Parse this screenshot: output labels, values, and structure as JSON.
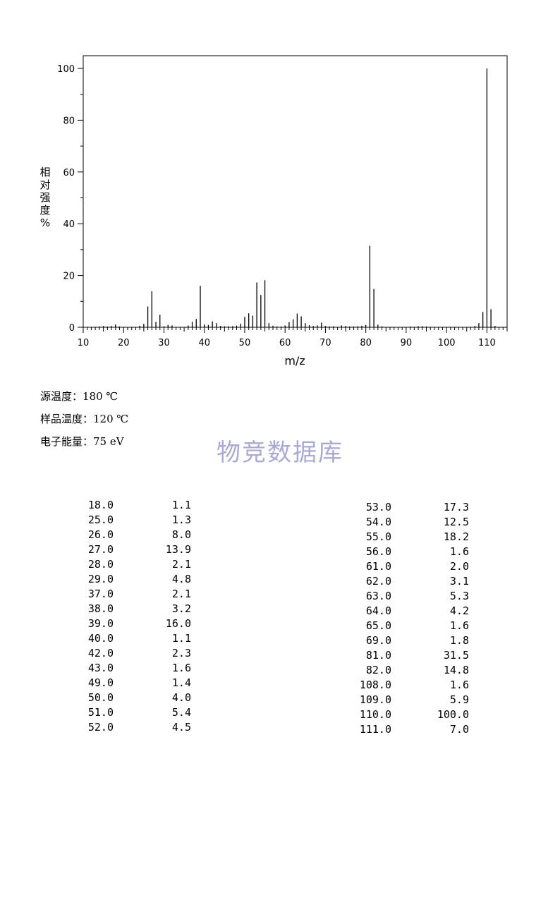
{
  "chart_data": {
    "type": "bar",
    "xlabel": "m/z",
    "ylabel_chars": [
      "相",
      "对",
      "强",
      "度",
      "%"
    ],
    "xlim": [
      10,
      115
    ],
    "ylim": [
      0,
      100
    ],
    "x_ticks": [
      10,
      20,
      30,
      40,
      50,
      60,
      70,
      80,
      90,
      100,
      110
    ],
    "y_ticks": [
      0,
      20,
      40,
      60,
      80,
      100
    ],
    "peaks": [
      {
        "x": 14,
        "y": 0.3
      },
      {
        "x": 15,
        "y": 0.5
      },
      {
        "x": 16,
        "y": 0.3
      },
      {
        "x": 17,
        "y": 0.5
      },
      {
        "x": 18,
        "y": 1.1
      },
      {
        "x": 19,
        "y": 0.3
      },
      {
        "x": 24,
        "y": 0.6
      },
      {
        "x": 25,
        "y": 1.3
      },
      {
        "x": 26,
        "y": 8.0
      },
      {
        "x": 27,
        "y": 13.9
      },
      {
        "x": 28,
        "y": 2.1
      },
      {
        "x": 29,
        "y": 4.8
      },
      {
        "x": 30,
        "y": 0.4
      },
      {
        "x": 31,
        "y": 0.9
      },
      {
        "x": 32,
        "y": 0.7
      },
      {
        "x": 36,
        "y": 0.7
      },
      {
        "x": 37,
        "y": 2.1
      },
      {
        "x": 38,
        "y": 3.2
      },
      {
        "x": 39,
        "y": 16.0
      },
      {
        "x": 40,
        "y": 1.1
      },
      {
        "x": 41,
        "y": 0.9
      },
      {
        "x": 42,
        "y": 2.3
      },
      {
        "x": 43,
        "y": 1.6
      },
      {
        "x": 44,
        "y": 0.5
      },
      {
        "x": 45,
        "y": 0.4
      },
      {
        "x": 46,
        "y": 0.4
      },
      {
        "x": 47,
        "y": 0.4
      },
      {
        "x": 48,
        "y": 0.6
      },
      {
        "x": 49,
        "y": 1.4
      },
      {
        "x": 50,
        "y": 4.0
      },
      {
        "x": 51,
        "y": 5.4
      },
      {
        "x": 52,
        "y": 4.5
      },
      {
        "x": 53,
        "y": 17.3
      },
      {
        "x": 54,
        "y": 12.5
      },
      {
        "x": 55,
        "y": 18.2
      },
      {
        "x": 56,
        "y": 1.6
      },
      {
        "x": 57,
        "y": 0.6
      },
      {
        "x": 58,
        "y": 0.3
      },
      {
        "x": 59,
        "y": 0.3
      },
      {
        "x": 60,
        "y": 0.7
      },
      {
        "x": 61,
        "y": 2.0
      },
      {
        "x": 62,
        "y": 3.1
      },
      {
        "x": 63,
        "y": 5.3
      },
      {
        "x": 64,
        "y": 4.2
      },
      {
        "x": 65,
        "y": 1.6
      },
      {
        "x": 66,
        "y": 0.8
      },
      {
        "x": 67,
        "y": 0.5
      },
      {
        "x": 68,
        "y": 0.7
      },
      {
        "x": 69,
        "y": 1.8
      },
      {
        "x": 70,
        "y": 0.5
      },
      {
        "x": 71,
        "y": 0.3
      },
      {
        "x": 72,
        "y": 0.4
      },
      {
        "x": 74,
        "y": 0.7
      },
      {
        "x": 75,
        "y": 0.5
      },
      {
        "x": 76,
        "y": 0.3
      },
      {
        "x": 77,
        "y": 0.3
      },
      {
        "x": 78,
        "y": 0.4
      },
      {
        "x": 79,
        "y": 0.6
      },
      {
        "x": 80,
        "y": 0.9
      },
      {
        "x": 81,
        "y": 31.5
      },
      {
        "x": 82,
        "y": 14.8
      },
      {
        "x": 83,
        "y": 1.0
      },
      {
        "x": 84,
        "y": 0.4
      },
      {
        "x": 91,
        "y": 0.3
      },
      {
        "x": 93,
        "y": 0.4
      },
      {
        "x": 94,
        "y": 0.4
      },
      {
        "x": 95,
        "y": 0.3
      },
      {
        "x": 107,
        "y": 0.5
      },
      {
        "x": 108,
        "y": 1.6
      },
      {
        "x": 109,
        "y": 5.9
      },
      {
        "x": 110,
        "y": 100.0
      },
      {
        "x": 111,
        "y": 7.0
      },
      {
        "x": 112,
        "y": 0.5
      }
    ]
  },
  "meta": {
    "source_temp": {
      "label": "源温度：",
      "value": "180 ",
      "unit": "℃"
    },
    "sample_temp": {
      "label": "样品温度：",
      "value": "120 ",
      "unit": "℃"
    },
    "electron_energy": {
      "label": "电子能量：",
      "value": "75 eV"
    }
  },
  "watermark": "物竞数据库",
  "table_left": [
    [
      "18.0",
      "1.1"
    ],
    [
      "25.0",
      "1.3"
    ],
    [
      "26.0",
      "8.0"
    ],
    [
      "27.0",
      "13.9"
    ],
    [
      "28.0",
      "2.1"
    ],
    [
      "29.0",
      "4.8"
    ],
    [
      "37.0",
      "2.1"
    ],
    [
      "38.0",
      "3.2"
    ],
    [
      "39.0",
      "16.0"
    ],
    [
      "40.0",
      "1.1"
    ],
    [
      "42.0",
      "2.3"
    ],
    [
      "43.0",
      "1.6"
    ],
    [
      "49.0",
      "1.4"
    ],
    [
      "50.0",
      "4.0"
    ],
    [
      "51.0",
      "5.4"
    ],
    [
      "52.0",
      "4.5"
    ]
  ],
  "table_right": [
    [
      "53.0",
      "17.3"
    ],
    [
      "54.0",
      "12.5"
    ],
    [
      "55.0",
      "18.2"
    ],
    [
      "56.0",
      "1.6"
    ],
    [
      "61.0",
      "2.0"
    ],
    [
      "62.0",
      "3.1"
    ],
    [
      "63.0",
      "5.3"
    ],
    [
      "64.0",
      "4.2"
    ],
    [
      "65.0",
      "1.6"
    ],
    [
      "69.0",
      "1.8"
    ],
    [
      "81.0",
      "31.5"
    ],
    [
      "82.0",
      "14.8"
    ],
    [
      "108.0",
      "1.6"
    ],
    [
      "109.0",
      "5.9"
    ],
    [
      "110.0",
      "100.0"
    ],
    [
      "111.0",
      "7.0"
    ]
  ]
}
